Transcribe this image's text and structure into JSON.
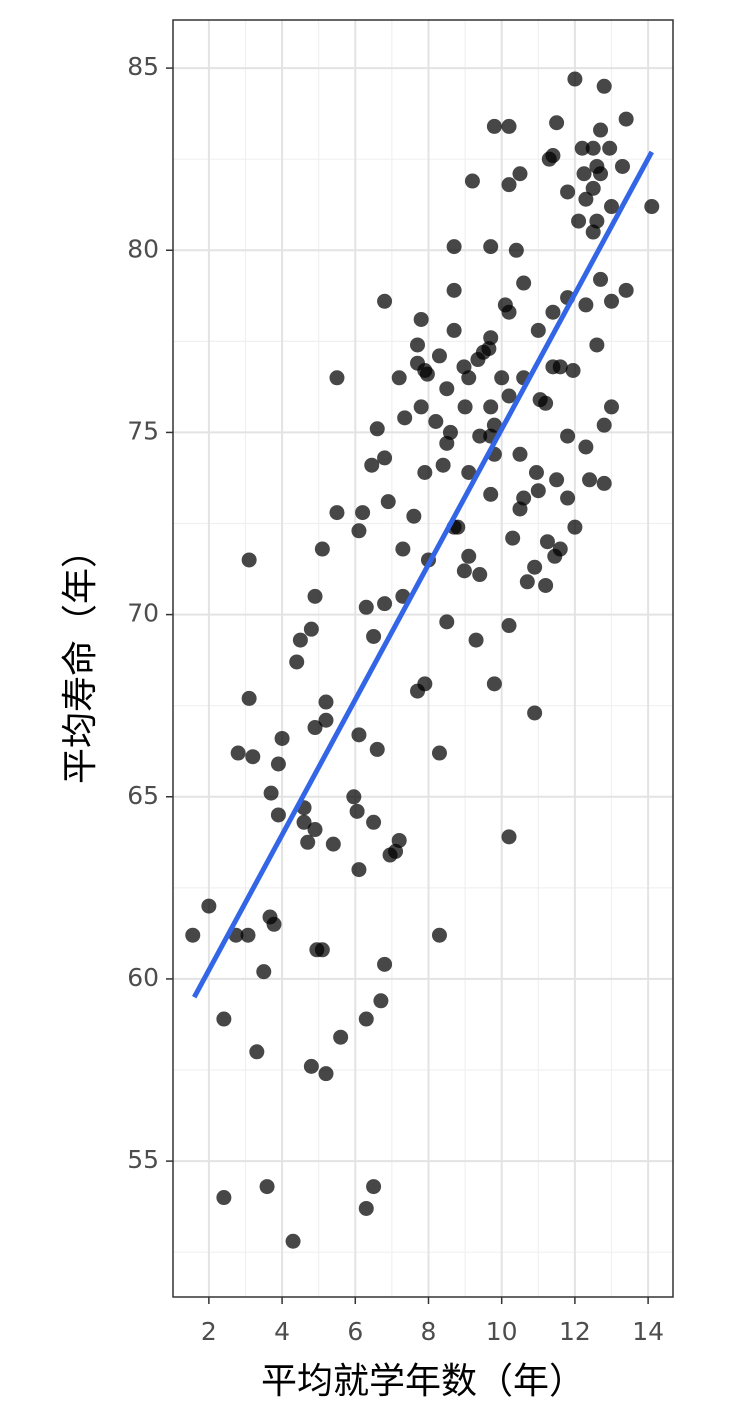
{
  "chart_data": {
    "type": "scatter",
    "x_label": "平均就学年数（年）",
    "y_label": "平均寿命（年）",
    "xlim": [
      1.02,
      14.68
    ],
    "ylim": [
      51.27,
      86.32
    ],
    "xticks": [
      2,
      4,
      6,
      8,
      10,
      12,
      14
    ],
    "yticks": [
      55,
      60,
      65,
      70,
      75,
      80,
      85
    ],
    "grid": true,
    "minor_grid": true,
    "series": [
      {
        "color": "#000000",
        "x": [
          1.56,
          2.0,
          2.74,
          3.07,
          2.41,
          2.41,
          3.31,
          3.59,
          4.3,
          3.5,
          3.67,
          3.78,
          3.1,
          3.1,
          2.8,
          3.2,
          4.0,
          3.9,
          3.7,
          3.9,
          4.4,
          4.5,
          4.8,
          4.9,
          5.1,
          5.5,
          5.5,
          4.6,
          4.6,
          4.7,
          4.9,
          4.95,
          5.1,
          4.8,
          5.2,
          5.6,
          5.2,
          5.2,
          4.9,
          5.4,
          5.96,
          6.05,
          6.1,
          6.1,
          6.6,
          6.5,
          6.8,
          6.7,
          6.3,
          6.3,
          6.5,
          6.2,
          6.1,
          6.3,
          6.5,
          6.8,
          6.45,
          6.6,
          6.8,
          6.9,
          6.8,
          6.95,
          7.1,
          7.2,
          7.3,
          7.3,
          7.2,
          7.35,
          7.6,
          7.7,
          7.9,
          8.0,
          7.9,
          7.8,
          7.7,
          7.8,
          7.7,
          7.9,
          7.97,
          8.3,
          8.2,
          8.5,
          8.3,
          8.3,
          8.5,
          8.4,
          8.5,
          8.6,
          8.7,
          8.7,
          8.7,
          8.7,
          8.8,
          8.97,
          9.0,
          9.1,
          9.1,
          8.98,
          9.1,
          9.2,
          9.35,
          9.5,
          9.4,
          9.4,
          9.3,
          9.7,
          9.7,
          9.65,
          9.7,
          9.7,
          9.8,
          9.8,
          9.7,
          9.8,
          9.8,
          10.2,
          10.0,
          10.1,
          10.2,
          10.2,
          10.5,
          10.4,
          10.2,
          10.3,
          10.2,
          10.2,
          10.5,
          10.5,
          10.6,
          10.6,
          10.6,
          10.7,
          10.9,
          10.9,
          10.95,
          11.0,
          11.0,
          11.05,
          11.2,
          11.2,
          11.25,
          11.4,
          11.3,
          11.4,
          11.5,
          11.45,
          11.6,
          11.5,
          11.6,
          11.4,
          11.8,
          11.8,
          11.8,
          11.95,
          11.8,
          12.0,
          12.0,
          12.1,
          12.2,
          12.25,
          12.3,
          12.3,
          12.3,
          12.4,
          12.5,
          12.5,
          12.5,
          12.6,
          12.6,
          12.6,
          12.7,
          12.7,
          12.7,
          12.8,
          12.8,
          12.8,
          12.95,
          13.0,
          13.0,
          13.0,
          13.3,
          13.4,
          13.4,
          14.1
        ],
        "values": [
          61.2,
          62.0,
          61.2,
          61.2,
          58.9,
          54.0,
          58.0,
          54.3,
          52.8,
          60.2,
          61.7,
          61.5,
          71.5,
          67.7,
          66.2,
          66.1,
          66.6,
          65.9,
          65.1,
          64.5,
          68.7,
          69.3,
          69.6,
          70.5,
          71.8,
          72.8,
          76.5,
          64.7,
          64.3,
          63.75,
          64.1,
          60.8,
          60.8,
          57.6,
          57.4,
          58.4,
          67.6,
          67.1,
          66.9,
          63.7,
          65.0,
          64.6,
          66.7,
          63.0,
          66.3,
          64.3,
          60.4,
          59.4,
          58.9,
          53.7,
          54.3,
          72.8,
          72.3,
          70.2,
          69.4,
          70.3,
          74.1,
          75.1,
          74.3,
          73.1,
          78.6,
          63.4,
          63.5,
          63.8,
          70.5,
          71.8,
          76.5,
          75.4,
          72.7,
          67.9,
          68.1,
          71.5,
          73.9,
          75.7,
          77.4,
          78.1,
          76.9,
          76.7,
          76.6,
          77.1,
          75.3,
          74.7,
          66.2,
          61.2,
          69.8,
          74.1,
          76.2,
          75.0,
          77.8,
          78.9,
          80.1,
          72.4,
          72.4,
          76.8,
          75.7,
          76.5,
          71.6,
          71.2,
          73.9,
          81.9,
          77.0,
          77.2,
          74.9,
          71.1,
          69.3,
          80.1,
          77.6,
          77.3,
          75.7,
          74.9,
          75.2,
          74.4,
          73.3,
          68.1,
          83.4,
          83.4,
          76.5,
          78.5,
          78.3,
          81.8,
          82.1,
          80.0,
          76.0,
          72.1,
          69.7,
          63.9,
          74.4,
          72.9,
          73.2,
          79.1,
          76.5,
          70.9,
          67.3,
          71.3,
          73.9,
          73.4,
          77.8,
          75.9,
          75.8,
          70.8,
          72.0,
          76.8,
          82.5,
          82.6,
          83.5,
          71.6,
          71.8,
          73.7,
          76.8,
          78.3,
          78.7,
          74.9,
          73.2,
          76.7,
          81.6,
          72.4,
          84.7,
          80.8,
          82.8,
          82.1,
          81.4,
          78.5,
          74.6,
          73.7,
          81.7,
          82.8,
          80.5,
          80.8,
          77.4,
          82.3,
          83.3,
          79.2,
          82.1,
          84.5,
          73.6,
          75.2,
          82.8,
          78.6,
          81.2,
          75.7,
          82.3,
          83.6,
          78.9,
          81.2
        ]
      }
    ],
    "fit_line": {
      "color": "#3366e6",
      "x": [
        1.6,
        14.1
      ],
      "values": [
        59.5,
        82.7
      ]
    }
  }
}
